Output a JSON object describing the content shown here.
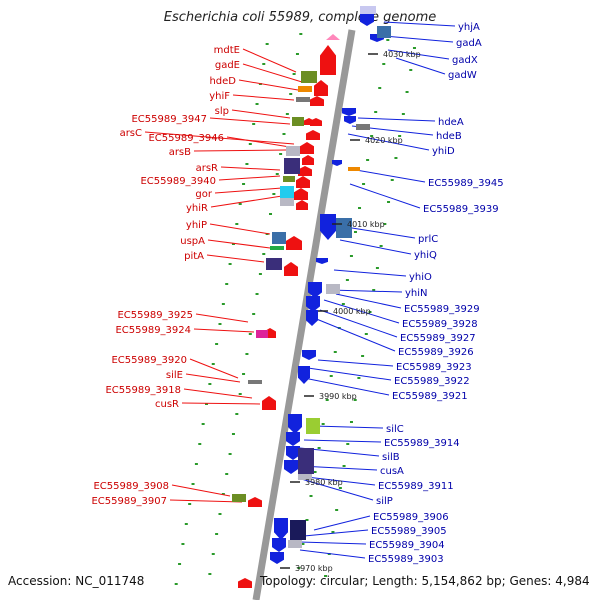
{
  "title": "Escherichia coli 55989, complete genome",
  "footer": {
    "accession": "Accession: NC_011748",
    "summary": "Topology: circular; Length: 5,154,862 bp; Genes: 4,984"
  },
  "colors": {
    "backbone": "#999999",
    "forward_strand": "#ee1111",
    "reverse_strand": "#1122dd",
    "tick": "#2a9a2a",
    "left_label_text": "#cc0000",
    "right_label_text": "#0000aa"
  },
  "kbp_markers": [
    "4030 kbp",
    "4020 kbp",
    "4010 kbp",
    "4000 kbp",
    "3990 kbp",
    "3980 kbp",
    "3970 kbp"
  ],
  "left_genes": [
    "mdtE",
    "gadE",
    "hdeD",
    "yhiF",
    "slp",
    "EC55989_3947",
    "arsC",
    "EC55989_3946",
    "arsB",
    "arsR",
    "EC55989_3940",
    "gor",
    "yhiR",
    "yhiP",
    "uspA",
    "pitA",
    "EC55989_3925",
    "EC55989_3924",
    "EC55989_3920",
    "silE",
    "EC55989_3918",
    "cusR",
    "EC55989_3908",
    "EC55989_3907"
  ],
  "right_genes": [
    "yhjA",
    "gadA",
    "gadX",
    "gadW",
    "hdeA",
    "hdeB",
    "yhiD",
    "EC55989_3945",
    "EC55989_3939",
    "prlC",
    "yhiQ",
    "yhiO",
    "yhiN",
    "EC55989_3929",
    "EC55989_3928",
    "EC55989_3927",
    "EC55989_3926",
    "EC55989_3923",
    "EC55989_3922",
    "EC55989_3921",
    "silC",
    "EC55989_3914",
    "silB",
    "cusA",
    "EC55989_3911",
    "silP",
    "EC55989_3906",
    "EC55989_3905",
    "EC55989_3904",
    "EC55989_3903"
  ]
}
